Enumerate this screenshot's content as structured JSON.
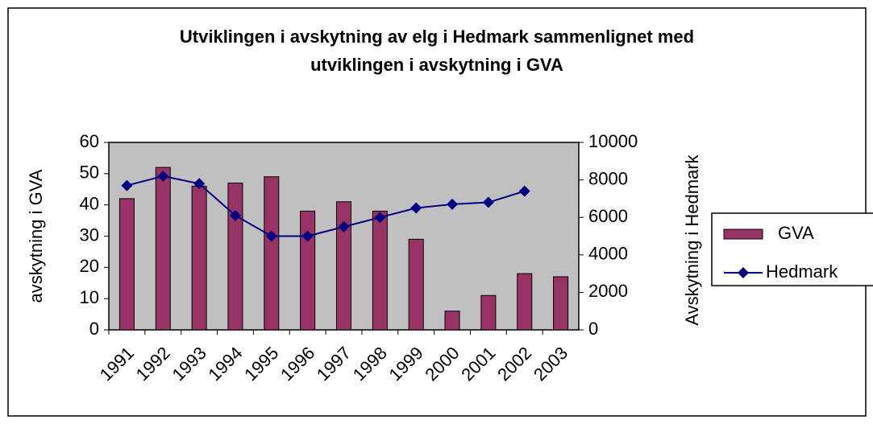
{
  "chart_data": {
    "type": "bar",
    "title": [
      "Utviklingen i avskytning av elg i Hedmark sammenlignet med",
      "utviklingen i avskytning i GVA"
    ],
    "categories": [
      "1991",
      "1992",
      "1993",
      "1994",
      "1995",
      "1996",
      "1997",
      "1998",
      "1999",
      "2000",
      "2001",
      "2002",
      "2003"
    ],
    "series": [
      {
        "name": "GVA",
        "type": "bar",
        "color": "#993366",
        "axis": "y",
        "values": [
          42,
          52,
          46,
          47,
          49,
          38,
          41,
          38,
          29,
          6,
          11,
          18,
          17
        ]
      },
      {
        "name": "Hedmark",
        "type": "line",
        "color": "#000080",
        "axis": "y2",
        "values": [
          7700,
          8200,
          7800,
          6100,
          5000,
          5000,
          5500,
          6000,
          6500,
          6700,
          6800,
          7400,
          null
        ]
      }
    ],
    "y_label": "avskytning i GVA",
    "y2_label": "Avskytning i Hedmark",
    "ylim": [
      0,
      60
    ],
    "yticks": [
      0,
      10,
      20,
      30,
      40,
      50,
      60
    ],
    "y2lim": [
      0,
      10000
    ],
    "y2ticks": [
      0,
      2000,
      4000,
      6000,
      8000,
      10000
    ],
    "legend": "right"
  }
}
